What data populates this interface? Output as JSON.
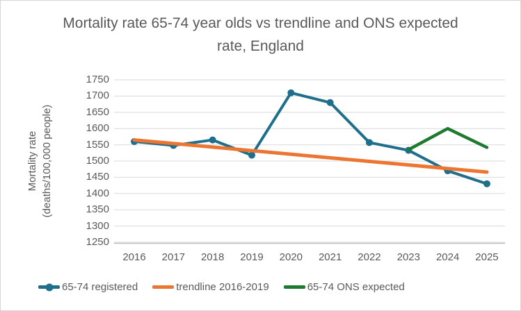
{
  "title": "Mortality rate 65-74 year olds vs trendline and ONS expected rate, England",
  "y_axis": {
    "label": "Mortality rate",
    "units": "(deaths/100,000 people)"
  },
  "legend": [
    {
      "label": "65-74 registered"
    },
    {
      "label": "trendline 2016-2019"
    },
    {
      "label": "65-74 ONS expected"
    }
  ],
  "colors": {
    "registered": "#1F6E8C",
    "trendline": "#EC7532",
    "ons_expected": "#1E7A2E",
    "gridline": "#D9D9D9",
    "axis_line": "#BFBFBF",
    "text": "#595959"
  },
  "chart_data": {
    "type": "line",
    "title": "Mortality rate 65-74 year olds vs trendline and ONS expected rate, England",
    "xlabel": "",
    "ylabel": "Mortality rate (deaths/100,000 people)",
    "categories": [
      "2016",
      "2017",
      "2018",
      "2019",
      "2020",
      "2021",
      "2022",
      "2023",
      "2024",
      "2025"
    ],
    "yticks": [
      1750,
      1700,
      1650,
      1600,
      1550,
      1500,
      1450,
      1400,
      1350,
      1300,
      1250
    ],
    "ylim": [
      1250,
      1750
    ],
    "grid": "horizontal",
    "legend_position": "bottom",
    "series": [
      {
        "name": "65-74 registered",
        "color": "#1F6E8C",
        "marker": true,
        "line_width": 4,
        "x": [
          2016,
          2017,
          2018,
          2019,
          2020,
          2021,
          2022,
          2023,
          2024,
          2025
        ],
        "values": [
          1560,
          1548,
          1565,
          1518,
          1710,
          1680,
          1557,
          1533,
          1470,
          1430
        ]
      },
      {
        "name": "trendline 2016-2019",
        "color": "#EC7532",
        "marker": false,
        "line_width": 5,
        "x": [
          2016,
          2025
        ],
        "values": [
          1565,
          1466
        ]
      },
      {
        "name": "65-74 ONS expected",
        "color": "#1E7A2E",
        "marker": false,
        "line_width": 4.5,
        "x": [
          2023,
          2024,
          2025
        ],
        "values": [
          1535,
          1600,
          1542
        ]
      }
    ]
  }
}
